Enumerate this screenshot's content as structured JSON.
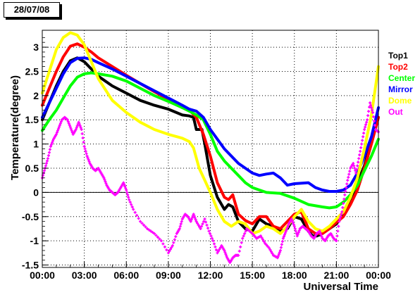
{
  "header": {
    "date_label": "28/07/08"
  },
  "chart_data": {
    "type": "line",
    "xlabel": "Universal Time",
    "ylabel": "Temperature(degree)",
    "xlim": [
      0,
      24
    ],
    "ylim": [
      -1.55,
      3.35
    ],
    "x_ticks": [
      "00:00",
      "03:00",
      "06:00",
      "09:00",
      "12:00",
      "15:00",
      "18:00",
      "21:00",
      "00:00"
    ],
    "x_tick_hours": [
      0,
      3,
      6,
      9,
      12,
      15,
      18,
      21,
      24
    ],
    "y_ticks": [
      -1.5,
      -1,
      -0.5,
      0,
      0.5,
      1,
      1.5,
      2,
      2.5,
      3
    ],
    "zero_line": true,
    "legend_position": "right",
    "series": [
      {
        "name": "Top1",
        "color": "#000000",
        "style": "line",
        "x": [
          0,
          0.5,
          1.0,
          1.5,
          2.0,
          2.5,
          3.0,
          3.5,
          4.0,
          5.0,
          6.0,
          7.0,
          8.0,
          9.0,
          10.0,
          10.5,
          10.8,
          11.0,
          11.4,
          11.6,
          12.0,
          12.5,
          13.0,
          13.3,
          13.6,
          14.0,
          14.5,
          15.0,
          15.5,
          16.0,
          16.5,
          17.0,
          17.5,
          18.0,
          18.5,
          19.0,
          19.3,
          19.6,
          20.0,
          20.5,
          21.0,
          21.5,
          22.0,
          22.5,
          23.0,
          23.5,
          24.0
        ],
        "y": [
          1.5,
          1.85,
          2.2,
          2.5,
          2.72,
          2.78,
          2.7,
          2.55,
          2.4,
          2.2,
          2.05,
          1.9,
          1.8,
          1.72,
          1.6,
          1.58,
          1.55,
          1.3,
          1.3,
          1.0,
          0.35,
          -0.1,
          -0.35,
          -0.25,
          -0.3,
          -0.6,
          -0.75,
          -0.8,
          -0.55,
          -0.65,
          -0.7,
          -0.8,
          -0.75,
          -0.5,
          -0.55,
          -0.8,
          -0.9,
          -0.9,
          -0.85,
          -0.75,
          -0.65,
          -0.45,
          -0.2,
          0.2,
          0.55,
          1.05,
          1.55
        ]
      },
      {
        "name": "Top2",
        "color": "#ff0000",
        "style": "line",
        "x": [
          0,
          0.5,
          1.0,
          1.5,
          2.0,
          2.5,
          3.0,
          3.5,
          4.0,
          5.0,
          6.0,
          7.0,
          8.0,
          9.0,
          10.0,
          10.5,
          11.0,
          11.5,
          12.0,
          12.5,
          13.0,
          13.3,
          13.6,
          14.0,
          14.5,
          15.0,
          15.5,
          16.0,
          16.5,
          17.0,
          17.5,
          18.0,
          18.5,
          19.0,
          19.5,
          20.0,
          20.5,
          21.0,
          21.5,
          22.0,
          22.5,
          23.0,
          23.5,
          24.0
        ],
        "y": [
          1.8,
          2.15,
          2.5,
          2.8,
          3.02,
          3.07,
          3.0,
          2.9,
          2.78,
          2.6,
          2.42,
          2.25,
          2.08,
          1.92,
          1.75,
          1.7,
          1.55,
          1.2,
          0.75,
          0.2,
          -0.1,
          -0.15,
          -0.05,
          -0.45,
          -0.58,
          -0.65,
          -0.5,
          -0.5,
          -0.7,
          -0.75,
          -0.6,
          -0.45,
          -0.4,
          -0.75,
          -0.85,
          -0.85,
          -0.75,
          -0.62,
          -0.5,
          -0.25,
          0.05,
          0.5,
          1.0,
          1.55
        ]
      },
      {
        "name": "Center",
        "color": "#00ff00",
        "style": "line",
        "x": [
          0,
          0.5,
          1.0,
          1.5,
          2.0,
          2.5,
          3.0,
          3.5,
          4.0,
          5.0,
          6.0,
          7.0,
          8.0,
          9.0,
          10.0,
          10.5,
          11.0,
          11.5,
          12.0,
          12.5,
          13.0,
          13.5,
          14.0,
          14.5,
          15.0,
          15.5,
          16.0,
          17.0,
          18.0,
          19.0,
          20.0,
          20.5,
          21.0,
          21.5,
          22.0,
          22.5,
          23.0,
          23.5,
          24.0
        ],
        "y": [
          1.28,
          1.5,
          1.7,
          1.95,
          2.2,
          2.38,
          2.45,
          2.47,
          2.45,
          2.4,
          2.3,
          2.15,
          2.0,
          1.88,
          1.75,
          1.68,
          1.6,
          1.5,
          1.2,
          0.85,
          0.65,
          0.5,
          0.35,
          0.2,
          0.1,
          0.05,
          0.0,
          -0.02,
          -0.12,
          -0.25,
          -0.3,
          -0.32,
          -0.3,
          -0.2,
          -0.05,
          0.15,
          0.45,
          0.75,
          1.1
        ]
      },
      {
        "name": "Mirror",
        "color": "#0000ff",
        "style": "line",
        "x": [
          0,
          0.5,
          1.0,
          1.5,
          2.0,
          2.5,
          3.0,
          3.5,
          4.0,
          5.0,
          6.0,
          7.0,
          8.0,
          9.0,
          10.0,
          10.5,
          11.0,
          11.5,
          12.0,
          12.5,
          13.0,
          13.5,
          14.0,
          14.5,
          15.0,
          15.5,
          16.0,
          16.5,
          17.0,
          17.5,
          18.0,
          19.0,
          19.5,
          20.0,
          20.5,
          21.0,
          21.5,
          22.0,
          22.5,
          23.0,
          23.5,
          24.0
        ],
        "y": [
          1.55,
          1.85,
          2.15,
          2.45,
          2.68,
          2.77,
          2.78,
          2.75,
          2.68,
          2.55,
          2.4,
          2.25,
          2.1,
          1.95,
          1.8,
          1.72,
          1.68,
          1.55,
          1.3,
          1.1,
          0.9,
          0.75,
          0.6,
          0.5,
          0.4,
          0.35,
          0.38,
          0.4,
          0.3,
          0.15,
          0.18,
          0.2,
          0.1,
          0.05,
          0.02,
          0.02,
          0.05,
          0.15,
          0.4,
          0.75,
          1.15,
          1.75
        ]
      },
      {
        "name": "Dome",
        "color": "#ffff00",
        "style": "line",
        "x": [
          0,
          0.5,
          1.0,
          1.5,
          2.0,
          2.5,
          3.0,
          3.5,
          4.0,
          5.0,
          6.0,
          7.0,
          8.0,
          9.0,
          10.0,
          10.5,
          10.8,
          11.2,
          11.6,
          12.0,
          12.5,
          13.0,
          13.5,
          14.0,
          14.5,
          15.0,
          15.5,
          16.0,
          16.5,
          17.0,
          17.5,
          18.0,
          18.5,
          19.0,
          19.5,
          20.0,
          20.5,
          21.0,
          21.5,
          22.0,
          22.5,
          23.0,
          23.5,
          24.0
        ],
        "y": [
          2.05,
          2.5,
          2.95,
          3.2,
          3.3,
          3.25,
          3.05,
          2.7,
          2.35,
          1.9,
          1.65,
          1.45,
          1.3,
          1.2,
          1.12,
          1.05,
          0.92,
          0.5,
          0.25,
          0.0,
          -0.35,
          -0.6,
          -0.7,
          -0.6,
          -0.65,
          -0.85,
          -0.8,
          -0.7,
          -0.75,
          -0.85,
          -0.7,
          -0.5,
          -0.35,
          -0.6,
          -0.75,
          -0.8,
          -0.7,
          -0.55,
          -0.4,
          -0.1,
          0.3,
          0.9,
          1.6,
          2.6
        ]
      },
      {
        "name": "Out",
        "color": "#ff00ff",
        "style": "markers",
        "x": [
          0,
          0.2,
          0.4,
          0.6,
          0.8,
          1.0,
          1.2,
          1.4,
          1.6,
          1.8,
          2.0,
          2.2,
          2.4,
          2.6,
          2.8,
          3.0,
          3.2,
          3.4,
          3.6,
          3.8,
          4.0,
          4.2,
          4.4,
          4.6,
          4.8,
          5.0,
          5.2,
          5.4,
          5.6,
          5.8,
          6.0,
          6.2,
          6.5,
          7.0,
          7.5,
          8.0,
          8.5,
          9.0,
          9.3,
          9.6,
          9.8,
          10.0,
          10.2,
          10.4,
          10.6,
          10.8,
          11.0,
          11.3,
          11.6,
          11.9,
          12.2,
          12.5,
          12.8,
          13.0,
          13.2,
          13.4,
          13.6,
          13.8,
          14.0,
          14.3,
          14.6,
          15.0,
          15.3,
          15.6,
          15.9,
          16.2,
          16.5,
          16.8,
          17.0,
          17.2,
          17.4,
          17.6,
          17.8,
          18.0,
          18.2,
          18.4,
          18.6,
          18.8,
          19.0,
          19.2,
          19.4,
          19.6,
          19.8,
          20.0,
          20.2,
          20.4,
          20.6,
          20.8,
          21.0,
          21.2,
          21.4,
          21.6,
          21.8,
          22.0,
          22.2,
          22.4,
          22.6,
          22.8,
          23.0,
          23.2,
          23.4,
          23.6,
          23.8,
          24.0
        ],
        "y": [
          0.3,
          0.5,
          0.7,
          0.95,
          1.1,
          1.2,
          1.35,
          1.5,
          1.55,
          1.5,
          1.35,
          1.2,
          1.3,
          1.45,
          1.3,
          0.95,
          0.75,
          0.6,
          0.5,
          0.45,
          0.5,
          0.4,
          0.3,
          0.15,
          0.05,
          0.0,
          -0.05,
          0.0,
          0.1,
          0.2,
          0.05,
          -0.15,
          -0.35,
          -0.6,
          -0.75,
          -0.85,
          -1.0,
          -1.25,
          -1.1,
          -0.85,
          -0.75,
          -0.55,
          -0.45,
          -0.5,
          -0.6,
          -0.45,
          -0.6,
          -0.75,
          -0.55,
          -0.8,
          -1.0,
          -1.25,
          -1.1,
          -1.2,
          -1.35,
          -1.45,
          -1.35,
          -1.3,
          -1.3,
          -0.95,
          -0.75,
          -0.85,
          -0.95,
          -0.9,
          -1.05,
          -1.15,
          -1.3,
          -1.35,
          -1.2,
          -0.95,
          -0.8,
          -0.65,
          -0.55,
          -0.7,
          -0.9,
          -0.75,
          -0.7,
          -0.75,
          -0.8,
          -0.9,
          -0.95,
          -0.85,
          -0.8,
          -0.95,
          -1.0,
          -0.9,
          -0.85,
          -0.95,
          -1.0,
          -0.6,
          -0.4,
          -0.05,
          0.25,
          0.5,
          0.6,
          0.4,
          0.7,
          1.0,
          1.3,
          1.5,
          1.85,
          1.65,
          1.3,
          1.25
        ]
      }
    ]
  }
}
